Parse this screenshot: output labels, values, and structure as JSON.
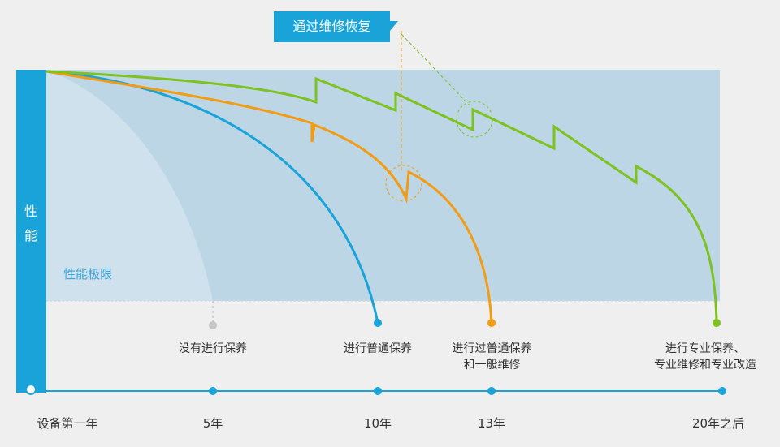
{
  "colors": {
    "blue": "#1aa3d8",
    "orange": "#f39c12",
    "green": "#7dc21e",
    "zone": "#bcd6e6",
    "gray": "#c6c6c6"
  },
  "y_axis": {
    "label_chars": [
      "性",
      "能"
    ]
  },
  "limit_label": "性能极限",
  "callout": {
    "text": "通过维修恢复"
  },
  "curves": [
    {
      "name": "blue",
      "end_label": "进行普通保养"
    },
    {
      "name": "orange",
      "end_label": [
        "进行过普通保养",
        "和一般维修"
      ]
    },
    {
      "name": "green",
      "end_label": [
        "进行专业保养、",
        "专业维修和专业改造"
      ]
    }
  ],
  "gray_label": "没有进行保养",
  "timeline": {
    "ticks": [
      "设备第一年",
      "5年",
      "10年",
      "13年",
      "20年之后"
    ]
  }
}
